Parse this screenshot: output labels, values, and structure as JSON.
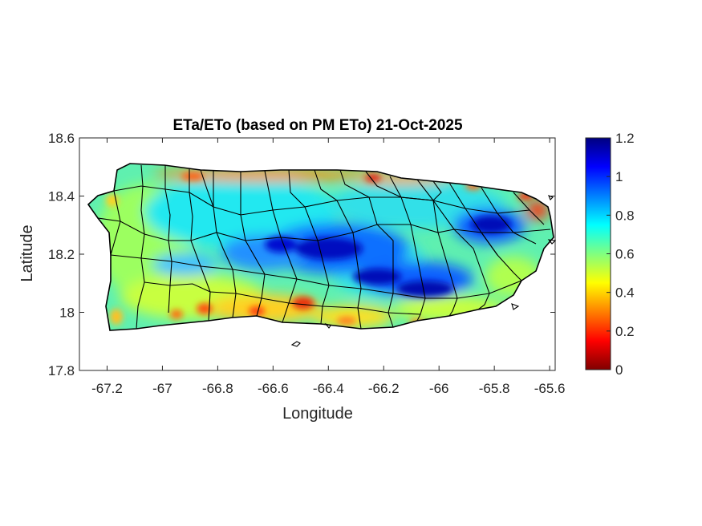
{
  "title": "ETa/ETo (based on PM ETo) 21-Oct-2025",
  "x_axis": {
    "label": "Longitude",
    "ticks": [
      "-67.2",
      "-67",
      "-66.8",
      "-66.6",
      "-66.4",
      "-66.2",
      "-66",
      "-65.8",
      "-65.6"
    ],
    "tick_values": [
      -67.2,
      -67.0,
      -66.8,
      -66.6,
      -66.4,
      -66.2,
      -66.0,
      -65.8,
      -65.6
    ],
    "range": [
      -67.3,
      -65.58
    ]
  },
  "y_axis": {
    "label": "Latitude",
    "ticks": [
      "18.6",
      "18.4",
      "18.2",
      "18",
      "17.8"
    ],
    "tick_values": [
      18.6,
      18.4,
      18.2,
      18.0,
      17.8
    ],
    "range": [
      17.8,
      18.6
    ]
  },
  "colorbar": {
    "colormap": "jet",
    "range": [
      0,
      1.2
    ],
    "ticks": [
      "1.2",
      "1",
      "0.8",
      "0.6",
      "0.4",
      "0.2",
      "0"
    ],
    "tick_values": [
      1.2,
      1.0,
      0.8,
      0.6,
      0.4,
      0.2,
      0.0
    ],
    "stops": [
      "#800000",
      "#ff0000",
      "#ff8000",
      "#ffff00",
      "#80ff80",
      "#00ffff",
      "#0080ff",
      "#0000ff",
      "#000080"
    ]
  },
  "chart_data": {
    "type": "heatmap",
    "title": "ETa/ETo (based on PM ETo) 21-Oct-2025",
    "xlabel": "Longitude",
    "ylabel": "Latitude",
    "xlim": [
      -67.3,
      -65.58
    ],
    "ylim": [
      17.8,
      18.6
    ],
    "clim": [
      0,
      1.2
    ],
    "region": "Puerto Rico",
    "pattern": "central mountain ridge and northeast (El Yunque) highest ~1.0-1.2; interior 0.7-0.85; south and west coasts 0.5-0.6; localized lows 0.1-0.3 along north coast, southern coast and east tip",
    "sample_points": [
      {
        "lon": -66.55,
        "lat": 18.2,
        "value": 1.0
      },
      {
        "lon": -66.4,
        "lat": 18.19,
        "value": 1.15
      },
      {
        "lon": -66.25,
        "lat": 18.13,
        "value": 1.1
      },
      {
        "lon": -66.08,
        "lat": 18.09,
        "value": 1.1
      },
      {
        "lon": -65.8,
        "lat": 18.29,
        "value": 1.1
      },
      {
        "lon": -66.7,
        "lat": 18.35,
        "value": 0.8
      },
      {
        "lon": -67.05,
        "lat": 18.2,
        "value": 0.6
      },
      {
        "lon": -66.9,
        "lat": 18.02,
        "value": 0.5
      },
      {
        "lon": -66.58,
        "lat": 18.02,
        "value": 0.35
      },
      {
        "lon": -66.55,
        "lat": 18.47,
        "value": 0.3
      },
      {
        "lon": -65.63,
        "lat": 18.35,
        "value": 0.2
      },
      {
        "lon": -66.0,
        "lat": 18.42,
        "value": 0.75
      },
      {
        "lon": -65.85,
        "lat": 18.05,
        "value": 0.55
      }
    ]
  }
}
